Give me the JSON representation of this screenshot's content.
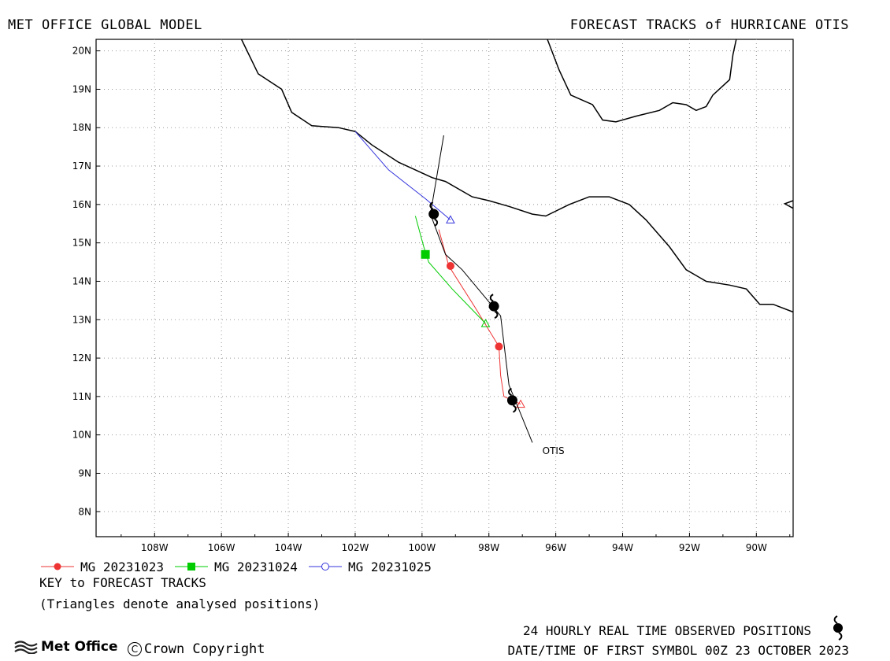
{
  "header": {
    "left": "MET OFFICE GLOBAL MODEL",
    "right": "FORECAST TRACKS of HURRICANE OTIS"
  },
  "map": {
    "lon_range": [
      -109.75,
      -88.9
    ],
    "lat_range": [
      7.35,
      20.3
    ],
    "lon_ticks": [
      {
        "value": -108,
        "label": "108W"
      },
      {
        "value": -106,
        "label": "106W"
      },
      {
        "value": -104,
        "label": "104W"
      },
      {
        "value": -102,
        "label": "102W"
      },
      {
        "value": -100,
        "label": "100W"
      },
      {
        "value": -98,
        "label": "98W"
      },
      {
        "value": -96,
        "label": "96W"
      },
      {
        "value": -94,
        "label": "94W"
      },
      {
        "value": -92,
        "label": "92W"
      },
      {
        "value": -90,
        "label": "90W"
      }
    ],
    "lat_ticks": [
      {
        "value": 20,
        "label": "20N"
      },
      {
        "value": 19,
        "label": "19N"
      },
      {
        "value": 18,
        "label": "18N"
      },
      {
        "value": 17,
        "label": "17N"
      },
      {
        "value": 16,
        "label": "16N"
      },
      {
        "value": 15,
        "label": "15N"
      },
      {
        "value": 14,
        "label": "14N"
      },
      {
        "value": 13,
        "label": "13N"
      },
      {
        "value": 12,
        "label": "12N"
      },
      {
        "value": 11,
        "label": "11N"
      },
      {
        "value": 10,
        "label": "10N"
      },
      {
        "value": 9,
        "label": "9N"
      },
      {
        "value": 8,
        "label": "8N"
      }
    ],
    "grid": "dotted",
    "coastlines": [
      [
        [
          -105.4,
          20.3
        ],
        [
          -104.9,
          19.4
        ],
        [
          -104.2,
          19.0
        ],
        [
          -103.9,
          18.4
        ],
        [
          -103.3,
          18.05
        ],
        [
          -102.5,
          18.0
        ],
        [
          -102.0,
          17.9
        ],
        [
          -101.5,
          17.55
        ],
        [
          -100.7,
          17.1
        ],
        [
          -100.2,
          16.9
        ],
        [
          -99.7,
          16.7
        ],
        [
          -99.3,
          16.6
        ],
        [
          -98.5,
          16.2
        ],
        [
          -98.0,
          16.1
        ],
        [
          -97.4,
          15.95
        ],
        [
          -96.7,
          15.75
        ],
        [
          -96.3,
          15.7
        ],
        [
          -95.6,
          16.0
        ],
        [
          -95.0,
          16.2
        ],
        [
          -94.4,
          16.2
        ],
        [
          -93.8,
          16.0
        ],
        [
          -93.3,
          15.6
        ],
        [
          -92.6,
          14.9
        ],
        [
          -92.1,
          14.3
        ],
        [
          -91.5,
          14.0
        ],
        [
          -90.8,
          13.9
        ],
        [
          -90.3,
          13.8
        ],
        [
          -89.9,
          13.4
        ],
        [
          -89.5,
          13.4
        ],
        [
          -88.9,
          13.2
        ]
      ],
      [
        [
          -96.25,
          20.3
        ],
        [
          -95.9,
          19.5
        ],
        [
          -95.55,
          18.85
        ],
        [
          -94.9,
          18.6
        ],
        [
          -94.6,
          18.2
        ],
        [
          -94.2,
          18.15
        ],
        [
          -93.6,
          18.3
        ],
        [
          -92.9,
          18.45
        ],
        [
          -92.5,
          18.65
        ],
        [
          -92.1,
          18.6
        ],
        [
          -91.8,
          18.45
        ],
        [
          -91.5,
          18.55
        ],
        [
          -91.3,
          18.85
        ],
        [
          -90.8,
          19.25
        ],
        [
          -90.7,
          19.9
        ],
        [
          -90.6,
          20.3
        ]
      ],
      [
        [
          -88.9,
          16.1
        ],
        [
          -89.15,
          16.02
        ],
        [
          -88.9,
          15.9
        ]
      ]
    ],
    "storm_label": {
      "text": "OTIS",
      "lon": -96.4,
      "lat": 9.5
    }
  },
  "chart_data": {
    "type": "map-tracks",
    "storm": "OTIS",
    "observed_track": {
      "points": [
        [
          -99.35,
          17.8
        ],
        [
          -99.75,
          15.75
        ],
        [
          -99.3,
          14.7
        ],
        [
          -98.8,
          14.3
        ],
        [
          -97.65,
          13.1
        ],
        [
          -97.4,
          11.3
        ],
        [
          -96.7,
          9.8
        ]
      ],
      "symbols": [
        [
          -99.65,
          15.75
        ],
        [
          -97.85,
          13.35
        ],
        [
          -97.3,
          10.9
        ]
      ]
    },
    "forecast_tracks": [
      {
        "name": "MG 20231023",
        "color": "#ee3333",
        "marker": "circle-filled",
        "analysis": [
          -97.05,
          10.8
        ],
        "points": [
          [
            -97.05,
            10.8
          ],
          [
            -97.55,
            11.0
          ],
          [
            -97.65,
            11.55
          ],
          [
            -97.7,
            12.3
          ],
          [
            -98.4,
            13.3
          ],
          [
            -99.2,
            14.4
          ],
          [
            -99.5,
            15.35
          ]
        ],
        "markers": [
          [
            -97.7,
            12.3
          ],
          [
            -99.15,
            14.4
          ]
        ]
      },
      {
        "name": "MG 20231024",
        "color": "#00cc00",
        "marker": "square-filled",
        "analysis": [
          -98.1,
          12.9
        ],
        "points": [
          [
            -98.1,
            12.9
          ],
          [
            -99.1,
            13.8
          ],
          [
            -99.8,
            14.5
          ],
          [
            -99.95,
            14.9
          ],
          [
            -100.2,
            15.7
          ]
        ],
        "markers": [
          [
            -99.9,
            14.7
          ]
        ]
      },
      {
        "name": "MG 20231025",
        "color": "#3333dd",
        "marker": "circle-open",
        "analysis": [
          -99.15,
          15.6
        ],
        "points": [
          [
            -99.15,
            15.6
          ],
          [
            -99.9,
            16.15
          ],
          [
            -101.0,
            16.9
          ],
          [
            -102.0,
            17.9
          ]
        ],
        "markers": []
      }
    ]
  },
  "key": {
    "title": "KEY to FORECAST TRACKS",
    "note": "(Triangles denote analysed positions)"
  },
  "footer": {
    "observed": "24 HOURLY REAL TIME OBSERVED POSITIONS",
    "first_symbol": "DATE/TIME OF FIRST SYMBOL 00Z 23 OCTOBER 2023",
    "logo": "Met Office",
    "copyright": "Crown Copyright"
  }
}
